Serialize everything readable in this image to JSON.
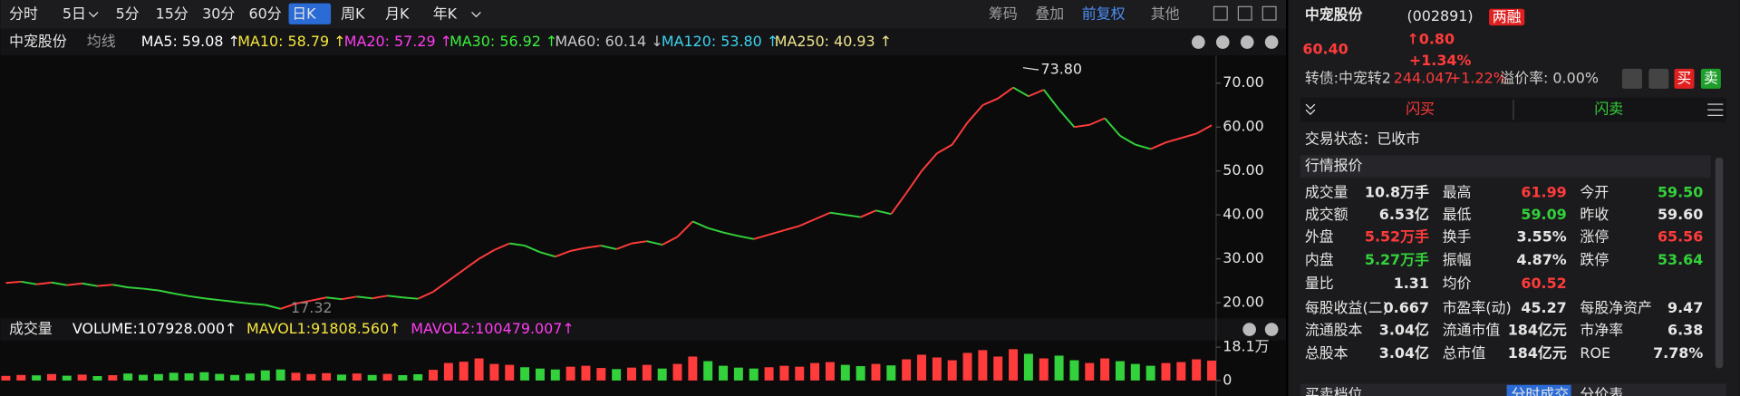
{
  "toolbar": {
    "periods": [
      "分时",
      "5日",
      "5分",
      "15分",
      "30分",
      "60分",
      "日K",
      "周K",
      "月K",
      "年K"
    ],
    "active": "日K",
    "tools": [
      "筹码",
      "叠加",
      "前复权",
      "其他"
    ]
  },
  "chart_header": {
    "name": "中宠股份",
    "ma_mode": "均线",
    "mas": [
      {
        "label": "MA5: 59.08 ↑",
        "color": "#ffffff"
      },
      {
        "label": "MA10: 58.79 ↑",
        "color": "#f5e63c"
      },
      {
        "label": "MA20: 57.29 ↑",
        "color": "#ff3cf0"
      },
      {
        "label": "MA30: 56.92 ↑",
        "color": "#3cf03c"
      },
      {
        "label": "MA60: 60.14 ↓",
        "color": "#c8c8c8"
      },
      {
        "label": "MA120: 53.80 ↑",
        "color": "#3cd2f0"
      },
      {
        "label": "MA250: 40.93 ↑",
        "color": "#f0e68c"
      }
    ]
  },
  "volume_header": {
    "name": "成交量",
    "items": [
      {
        "label": "VOLUME:107928.000↑",
        "color": "#ffffff"
      },
      {
        "label": "MAVOL1:91808.560↑",
        "color": "#f5e63c"
      },
      {
        "label": "MAVOL2:100479.007↑",
        "color": "#ff3cf0"
      }
    ]
  },
  "chart_data": [
    {
      "type": "line",
      "ylim": [
        17.2,
        76.3
      ],
      "yticks": [
        {
          "value": 70,
          "label": "70.00"
        },
        {
          "value": 60,
          "label": "60.00"
        },
        {
          "value": 50,
          "label": "50.00"
        },
        {
          "value": 40,
          "label": "40.00"
        },
        {
          "value": 30,
          "label": "30.00"
        },
        {
          "value": 20,
          "label": "20.00"
        }
      ],
      "annotations": [
        {
          "text": "73.80"
        },
        {
          "text": "17.32"
        }
      ],
      "values": [
        24.5,
        24.8,
        24.2,
        24.6,
        24.0,
        24.4,
        23.8,
        24.1,
        23.5,
        23.2,
        22.8,
        22.1,
        21.5,
        21.0,
        20.6,
        20.2,
        19.8,
        19.5,
        18.6,
        19.8,
        20.5,
        21.2,
        20.8,
        21.4,
        21.0,
        21.6,
        21.2,
        20.9,
        22.5,
        25.0,
        27.5,
        30.0,
        32.0,
        33.5,
        33.0,
        31.5,
        30.5,
        31.8,
        32.5,
        33.0,
        32.2,
        33.5,
        34.0,
        33.2,
        35.0,
        38.5,
        37.0,
        36.0,
        35.2,
        34.5,
        35.5,
        36.5,
        37.5,
        39.0,
        40.5,
        40.0,
        39.5,
        41.0,
        40.2,
        45.0,
        50.0,
        54.0,
        56.0,
        61.0,
        65.0,
        66.5,
        69.0,
        67.0,
        68.5,
        64.0,
        60.0,
        60.5,
        62.0,
        58.0,
        56.0,
        55.0,
        56.5,
        57.5,
        58.5,
        60.4
      ]
    },
    {
      "type": "bar",
      "ylim": [
        -4.2,
        22.9
      ],
      "yticks": [
        {
          "value": 18.1,
          "label": "18.1万"
        },
        0
      ],
      "values": [
        2.5,
        3,
        2.8,
        3.5,
        2.6,
        3.2,
        2.4,
        2.9,
        3.8,
        3.1,
        3.5,
        4.2,
        3.9,
        4.5,
        3.6,
        3.0,
        3.8,
        5.5,
        6.0,
        4.2,
        3.5,
        4.0,
        3.2,
        3.8,
        3.0,
        3.6,
        2.9,
        3.4,
        5.8,
        9.5,
        10.2,
        12.0,
        9.0,
        8.5,
        7.2,
        6.5,
        6.0,
        7.5,
        8.0,
        6.8,
        6.2,
        7.0,
        8.5,
        6.5,
        9.0,
        13.0,
        10.5,
        8.0,
        7.0,
        6.5,
        7.2,
        8.0,
        7.5,
        9.5,
        10.0,
        8.5,
        7.8,
        9.0,
        8.2,
        11.5,
        14.0,
        12.5,
        11.0,
        15.0,
        16.5,
        13.0,
        17.0,
        14.5,
        12.0,
        13.5,
        11.0,
        9.5,
        12.0,
        10.5,
        9.0,
        8.0,
        9.5,
        10.0,
        11.5,
        10.8
      ]
    }
  ],
  "quote": {
    "name": "中宠股份",
    "code": "(002891)",
    "badge": "两融",
    "price": "60.40",
    "change": "↑0.80",
    "change_pct": "+1.34%",
    "bond": "转债:中宠转2",
    "bond_price": "244.047",
    "bond_change": "+1.22%",
    "premium": "溢价率: 0.00%",
    "buttons": [
      "买",
      "卖"
    ],
    "flash_buy": "闪买",
    "flash_sell": "闪卖",
    "status": "交易状态：已收市",
    "section": "行情报价",
    "rows": [
      [
        {
          "label": "成交量",
          "value": "10.8万手",
          "color": "#e6e6e6"
        },
        {
          "label": "最高",
          "value": "61.99",
          "color": "#ff3b3b"
        },
        {
          "label": "今开",
          "value": "59.50",
          "color": "#33d13b"
        }
      ],
      [
        {
          "label": "成交额",
          "value": "6.53亿",
          "color": "#e6e6e6"
        },
        {
          "label": "最低",
          "value": "59.09",
          "color": "#33d13b"
        },
        {
          "label": "昨收",
          "value": "59.60",
          "color": "#e6e6e6"
        }
      ],
      [
        {
          "label": "外盘",
          "value": "5.52万手",
          "color": "#ff3b3b"
        },
        {
          "label": "换手",
          "value": "3.55%",
          "color": "#e6e6e6"
        },
        {
          "label": "涨停",
          "value": "65.56",
          "color": "#ff3b3b"
        }
      ],
      [
        {
          "label": "内盘",
          "value": "5.27万手",
          "color": "#33d13b"
        },
        {
          "label": "振幅",
          "value": "4.87%",
          "color": "#e6e6e6"
        },
        {
          "label": "跌停",
          "value": "53.64",
          "color": "#33d13b"
        }
      ],
      [
        {
          "label": "量比",
          "value": "1.31",
          "color": "#e6e6e6"
        },
        {
          "label": "均价",
          "value": "60.52",
          "color": "#ff3b3b"
        }
      ],
      [
        {
          "label": "每股收益(二)",
          "value": "0.667",
          "color": "#e6e6e6"
        },
        {
          "label": "市盈率(动)",
          "value": "45.27",
          "color": "#e6e6e6"
        },
        {
          "label": "每股净资产",
          "value": "9.47",
          "color": "#e6e6e6"
        }
      ],
      [
        {
          "label": "流通股本",
          "value": "3.04亿",
          "color": "#e6e6e6"
        },
        {
          "label": "流通市值",
          "value": "184亿元",
          "color": "#e6e6e6"
        },
        {
          "label": "市净率",
          "value": "6.38",
          "color": "#e6e6e6"
        }
      ],
      [
        {
          "label": "总股本",
          "value": "3.04亿",
          "color": "#e6e6e6"
        },
        {
          "label": "总市值",
          "value": "184亿元",
          "color": "#e6e6e6"
        },
        {
          "label": "ROE",
          "value": "7.78%",
          "color": "#e6e6e6"
        }
      ]
    ],
    "bottom_tabs": [
      "买卖档位",
      "分时成交",
      "分价表"
    ]
  }
}
